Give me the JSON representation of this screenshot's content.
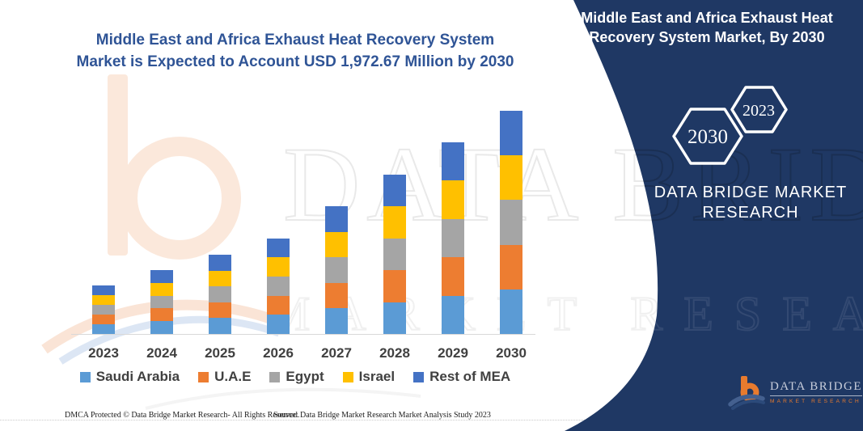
{
  "headline": "Middle East and Africa Exhaust Heat Recovery System Market is Expected to Account USD 1,972.67 Million by 2030",
  "chart_data": {
    "type": "bar",
    "stacked": true,
    "title": "Middle East and Africa Exhaust Heat Recovery System Market",
    "unit": "USD Million",
    "categories": [
      "2023",
      "2024",
      "2025",
      "2026",
      "2027",
      "2028",
      "2029",
      "2030"
    ],
    "series": [
      {
        "name": "Saudi Arabia",
        "color": "#5B9BD5",
        "values": [
          86,
          113,
          140,
          169,
          226,
          282,
          339,
          394.5
        ]
      },
      {
        "name": "U.A.E",
        "color": "#ED7D31",
        "values": [
          86,
          113,
          140,
          169,
          226,
          282,
          339,
          394.5
        ]
      },
      {
        "name": "Egypt",
        "color": "#A5A5A5",
        "values": [
          86,
          113,
          140,
          169,
          226,
          282,
          339,
          394.5
        ]
      },
      {
        "name": "Israel",
        "color": "#FFC000",
        "values": [
          86,
          113,
          140,
          169,
          226,
          282,
          339,
          394.5
        ]
      },
      {
        "name": "Rest of MEA",
        "color": "#4472C4",
        "values": [
          86,
          113,
          140,
          169,
          226,
          282,
          339,
          394.67
        ]
      }
    ],
    "totals_usd_million_estimated": [
      429,
      565,
      700,
      843,
      1129,
      1408,
      1694,
      1972.67
    ],
    "xlabel": "",
    "ylabel": "",
    "y_axis_visible": false,
    "gridlines": false,
    "legend_position": "bottom"
  },
  "panel": {
    "background": "#1F3864",
    "title": "Middle East and Africa Exhaust Heat Recovery System Market, By 2030",
    "hex_large": "2030",
    "hex_small": "2023",
    "brand_text": "DATA BRIDGE MARKET RESEARCH"
  },
  "logo": {
    "name": "DATA BRIDGE",
    "subtitle": "MARKET RESEARCH"
  },
  "watermark": {
    "row1": "DATA BRIDGE",
    "row2": "MARKET RESEARCH"
  },
  "footer": {
    "left": "DMCA Protected © Data Bridge Market Research-  All Rights Reserved.",
    "right": "Source: Data Bridge Market Research  Market Analysis Study 2023"
  }
}
